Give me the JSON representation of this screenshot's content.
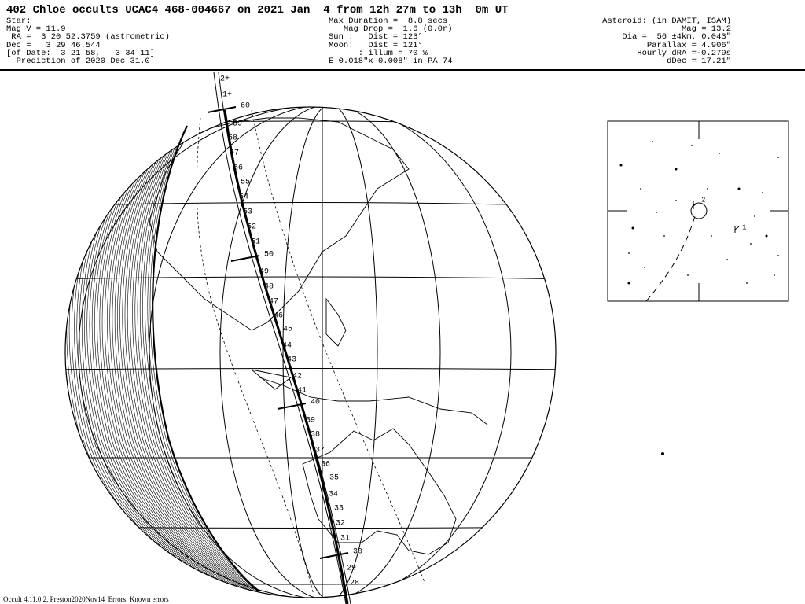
{
  "header": {
    "title": "402 Chloe occults UCAC4 468-004667 on 2021 Jan  4 from 12h 27m to 13h  0m UT",
    "star_lines": [
      "Star:",
      "Mag V = 11.9",
      " RA =  3 20 52.3759 (astrometric)",
      "Dec =   3 29 46.544",
      "[of Date:  3 21 58,   3 34 11]",
      "  Prediction of 2020 Dec 31.0"
    ],
    "event_lines": [
      "Max Duration =  8.8 secs",
      "   Mag Drop =  1.6 (0.0r)",
      "Sun :   Dist = 123°",
      "Moon:   Dist = 121°",
      "      : illum = 70 %",
      "E 0.018\"x 0.008\" in PA 74"
    ],
    "asteroid_lines": [
      "Asteroid: (in DAMIT, ISAM)",
      "Mag = 13.2",
      "Dia =  56 ±4km, 0.043\"",
      "Parallax = 4.906\"",
      "Hourly dRA =-0.279s",
      "dDec = 17.21\""
    ]
  },
  "globe": {
    "path_end_labels": [
      "2+",
      "1+"
    ],
    "minute_labels": [
      "60",
      "59",
      "58",
      "57",
      "56",
      "55",
      "54",
      "53",
      "52",
      "51",
      "50",
      "49",
      "48",
      "47",
      "46",
      "45",
      "44",
      "43",
      "42",
      "41",
      "40",
      "39",
      "38",
      "37",
      "36",
      "35",
      "34",
      "33",
      "32",
      "31",
      "30",
      "29",
      "28"
    ]
  },
  "finder": {
    "labels": [
      "2",
      "1"
    ]
  },
  "footer": "Occult 4.11.0.2, Preston2020Nov14  Errors: Known errors"
}
